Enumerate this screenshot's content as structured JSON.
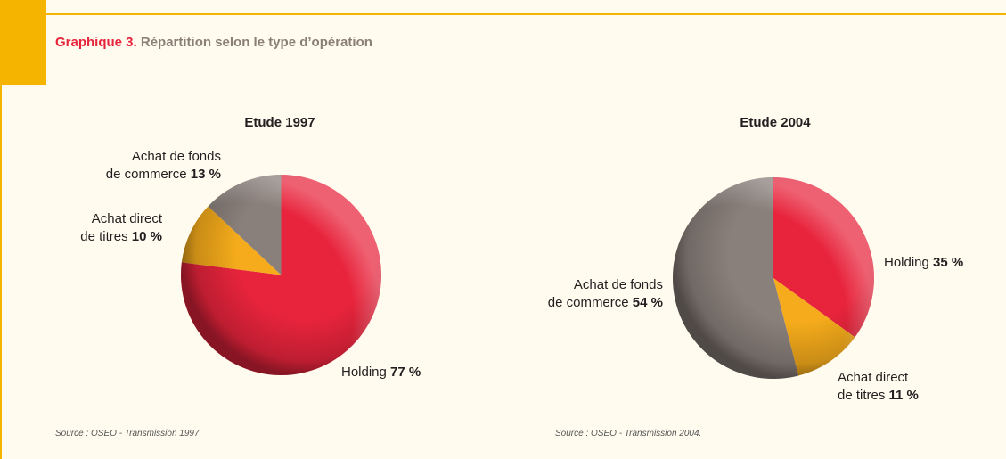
{
  "figure": {
    "number": "Graphique 3.",
    "title": "Répartition selon le type d’opération"
  },
  "colors": {
    "red": "#e8243c",
    "orange": "#f5ab1b",
    "gray": "#8a807b",
    "accent": "#f5b400"
  },
  "chart_data": [
    {
      "type": "pie",
      "title": "Etude 1997",
      "slices": [
        {
          "label_lines": [
            "Holding"
          ],
          "value": 77,
          "value_label": "77 %",
          "color": "#e8243c"
        },
        {
          "label_lines": [
            "Achat direct",
            "de titres"
          ],
          "value": 10,
          "value_label": "10 %",
          "color": "#f5ab1b"
        },
        {
          "label_lines": [
            "Achat de fonds",
            "de commerce"
          ],
          "value": 13,
          "value_label": "13 %",
          "color": "#8a807b"
        }
      ],
      "source": "Source : OSEO - Transmission 1997."
    },
    {
      "type": "pie",
      "title": "Etude 2004",
      "slices": [
        {
          "label_lines": [
            "Holding"
          ],
          "value": 35,
          "value_label": "35 %",
          "color": "#e8243c"
        },
        {
          "label_lines": [
            "Achat direct",
            "de titres"
          ],
          "value": 11,
          "value_label": "11 %",
          "color": "#f5ab1b"
        },
        {
          "label_lines": [
            "Achat de fonds",
            "de commerce"
          ],
          "value": 54,
          "value_label": "54 %",
          "color": "#8a807b"
        }
      ],
      "source": "Source : OSEO - Transmission 2004."
    }
  ]
}
